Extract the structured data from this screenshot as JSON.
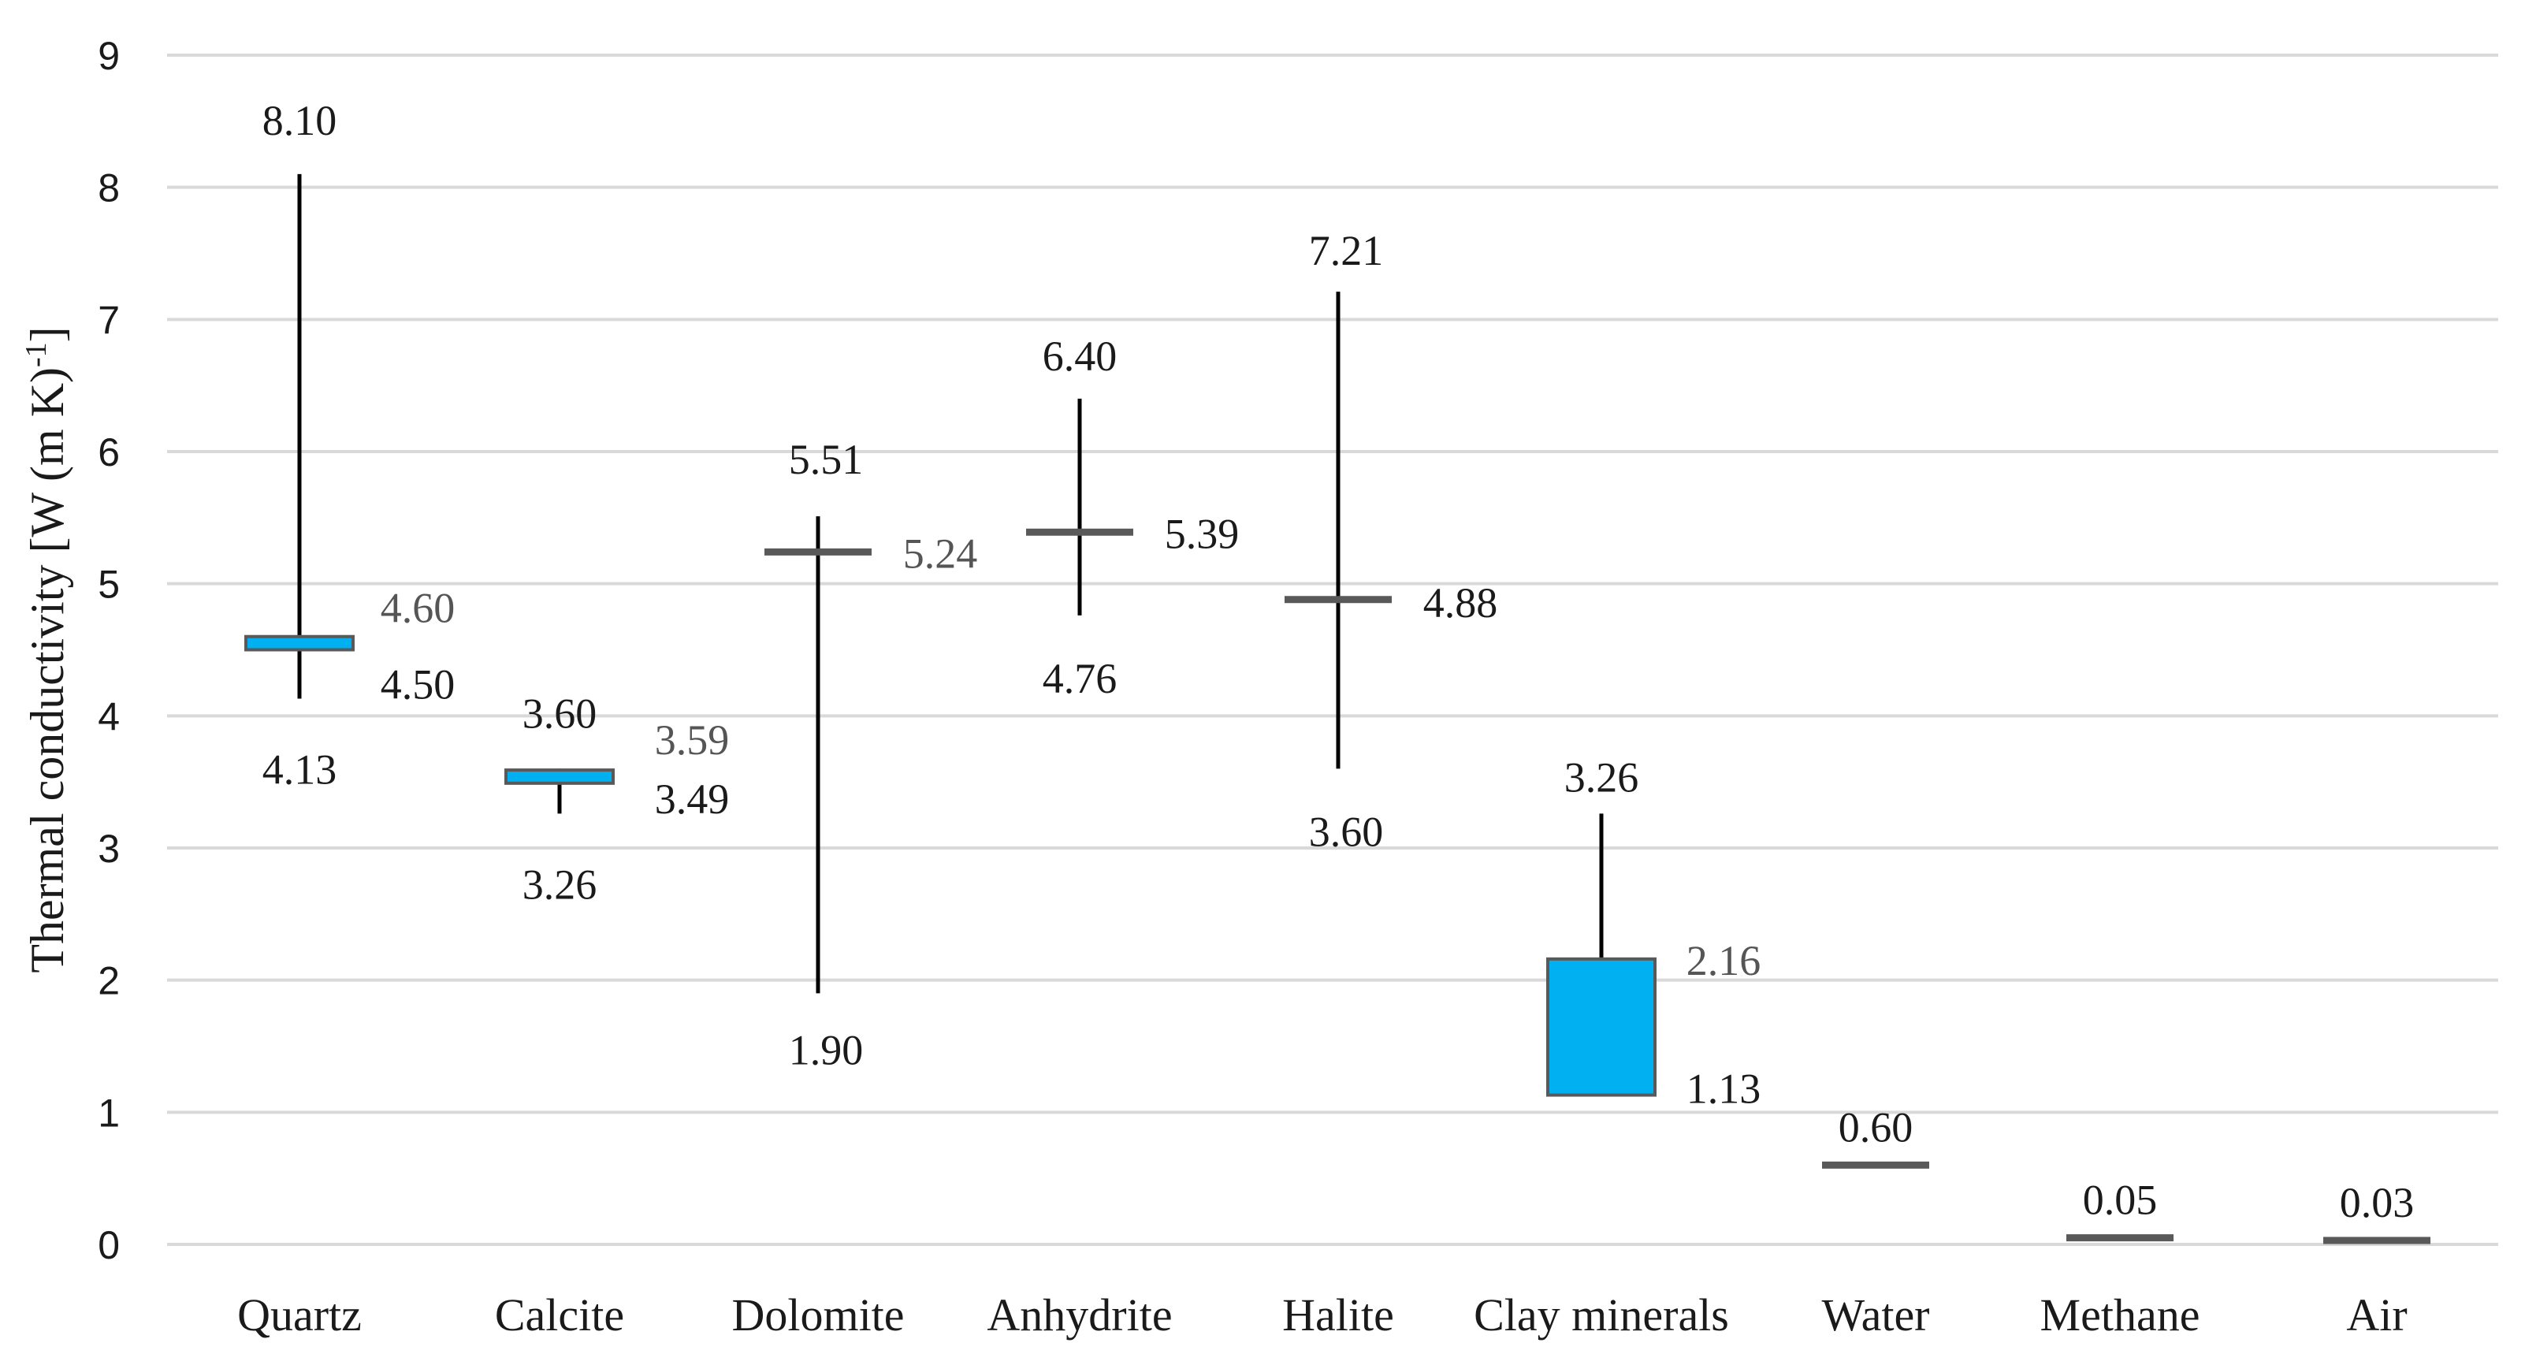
{
  "chart_data": {
    "type": "box",
    "title": "",
    "xlabel": "",
    "ylabel": {
      "text": "Thermal conductivity [W (m K)",
      "sup": "-1",
      "tail": "]"
    },
    "ylim": [
      0,
      9
    ],
    "yticks": [
      "0",
      "1",
      "2",
      "3",
      "4",
      "5",
      "6",
      "7",
      "8",
      "9"
    ],
    "grid": true,
    "colors": {
      "box_fill": "#00B0F0",
      "box_edge": "#595959",
      "whisker": "#000000",
      "median": "#595959",
      "grid": "#d9d9d9"
    },
    "categories": [
      {
        "name": "Quartz",
        "min": 4.13,
        "q1": 4.5,
        "q3": 4.6,
        "max": 8.1,
        "labels": [
          {
            "text": "8.10",
            "value": 8.1,
            "role": "max"
          },
          {
            "text": "4.60",
            "value": 4.6,
            "role": "q3",
            "gray": true
          },
          {
            "text": "4.50",
            "value": 4.5,
            "role": "q1"
          },
          {
            "text": "4.13",
            "value": 4.13,
            "role": "min"
          }
        ]
      },
      {
        "name": "Calcite",
        "min": 3.26,
        "q1": 3.49,
        "q3": 3.59,
        "max": 3.6,
        "labels": [
          {
            "text": "3.60",
            "value": 3.6,
            "role": "max"
          },
          {
            "text": "3.59",
            "value": 3.59,
            "role": "q3",
            "gray": true
          },
          {
            "text": "3.49",
            "value": 3.49,
            "role": "q1"
          },
          {
            "text": "3.26",
            "value": 3.26,
            "role": "min"
          }
        ]
      },
      {
        "name": "Dolomite",
        "min": 1.9,
        "median": 5.24,
        "max": 5.51,
        "labels": [
          {
            "text": "5.51",
            "value": 5.51,
            "role": "max"
          },
          {
            "text": "5.24",
            "value": 5.24,
            "role": "median",
            "gray": true
          },
          {
            "text": "1.90",
            "value": 1.9,
            "role": "min"
          }
        ]
      },
      {
        "name": "Anhydrite",
        "min": 4.76,
        "median": 5.39,
        "max": 6.4,
        "labels": [
          {
            "text": "6.40",
            "value": 6.4,
            "role": "max"
          },
          {
            "text": "5.39",
            "value": 5.39,
            "role": "median"
          },
          {
            "text": "4.76",
            "value": 4.76,
            "role": "min"
          }
        ]
      },
      {
        "name": "Halite",
        "min": 3.6,
        "median": 4.88,
        "max": 7.21,
        "labels": [
          {
            "text": "7.21",
            "value": 7.21,
            "role": "max"
          },
          {
            "text": "4.88",
            "value": 4.88,
            "role": "median"
          },
          {
            "text": "3.60",
            "value": 3.6,
            "role": "min"
          }
        ]
      },
      {
        "name": "Clay minerals",
        "min": 1.13,
        "q1": 1.13,
        "q3": 2.16,
        "max": 3.26,
        "labels": [
          {
            "text": "3.26",
            "value": 3.26,
            "role": "max"
          },
          {
            "text": "2.16",
            "value": 2.16,
            "role": "q3",
            "gray": true
          },
          {
            "text": "1.13",
            "value": 1.13,
            "role": "q1"
          }
        ]
      },
      {
        "name": "Water",
        "median": 0.6,
        "labels": [
          {
            "text": "0.60",
            "value": 0.6,
            "role": "median"
          }
        ]
      },
      {
        "name": "Methane",
        "median": 0.05,
        "labels": [
          {
            "text": "0.05",
            "value": 0.05,
            "role": "median"
          }
        ]
      },
      {
        "name": "Air",
        "median": 0.03,
        "labels": [
          {
            "text": "0.03",
            "value": 0.03,
            "role": "median"
          }
        ]
      }
    ]
  }
}
